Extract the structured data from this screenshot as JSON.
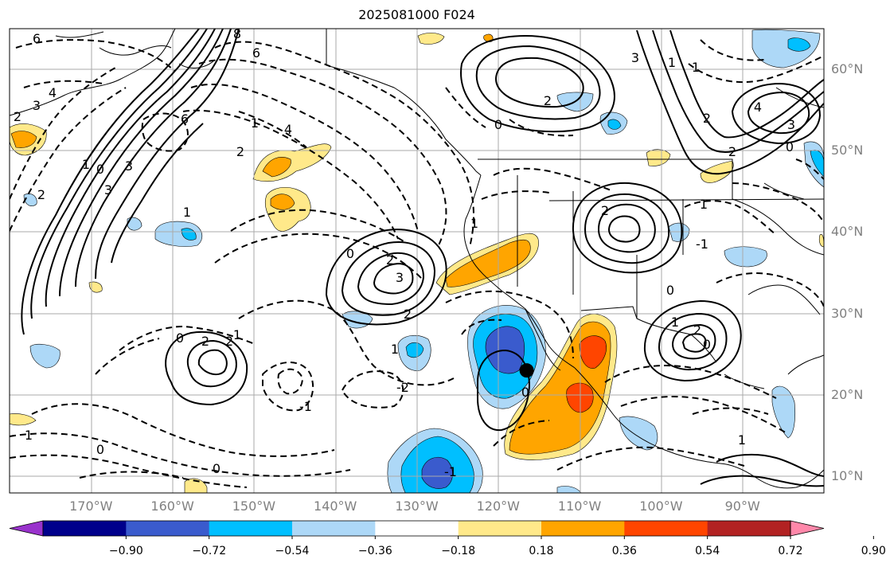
{
  "title": "2025081000 F024",
  "latitude_labels": [
    {
      "text": "60°N",
      "lat": 60
    },
    {
      "text": "50°N",
      "lat": 50
    },
    {
      "text": "40°N",
      "lat": 40
    },
    {
      "text": "30°N",
      "lat": 30
    },
    {
      "text": "20°N",
      "lat": 20
    },
    {
      "text": "10°N",
      "lat": 10
    }
  ],
  "longitude_labels": [
    {
      "text": "170°W",
      "lon": -170
    },
    {
      "text": "160°W",
      "lon": -160
    },
    {
      "text": "150°W",
      "lon": -150
    },
    {
      "text": "140°W",
      "lon": -140
    },
    {
      "text": "130°W",
      "lon": -130
    },
    {
      "text": "120°W",
      "lon": -120
    },
    {
      "text": "110°W",
      "lon": -110
    },
    {
      "text": "100°W",
      "lon": -100
    },
    {
      "text": "90°W",
      "lon": -90
    }
  ],
  "colorbar": {
    "ticks": [
      "−0.90",
      "−0.72",
      "−0.54",
      "−0.36",
      "−0.18",
      "0.18",
      "0.36",
      "0.54",
      "0.72",
      "0.90"
    ],
    "colors": [
      "#9932cc",
      "#00008b",
      "#3a5bcd",
      "#00bfff",
      "#add8f7",
      "#ffffff",
      "#ffe98a",
      "#ffa500",
      "#ff4500",
      "#b22222",
      "#ff88aa"
    ]
  },
  "contour_labels": [
    "6",
    "8",
    "6",
    "4",
    "3",
    "2",
    "6",
    "1",
    "2",
    "1",
    "4",
    "0",
    "3",
    "3",
    "2",
    "1",
    "2",
    "3",
    "2",
    "0",
    "2",
    "0",
    "2",
    "1",
    "0",
    "1",
    "2",
    "3",
    "1",
    "2",
    "1",
    "0",
    "2",
    "1",
    "-1",
    "-2",
    "-1",
    "1",
    "0",
    "0",
    "0",
    "1",
    "2",
    "3",
    "4",
    "1",
    "0",
    "2",
    "-1",
    "0",
    "1"
  ],
  "marker": {
    "lon": -116.5,
    "lat": 23
  }
}
